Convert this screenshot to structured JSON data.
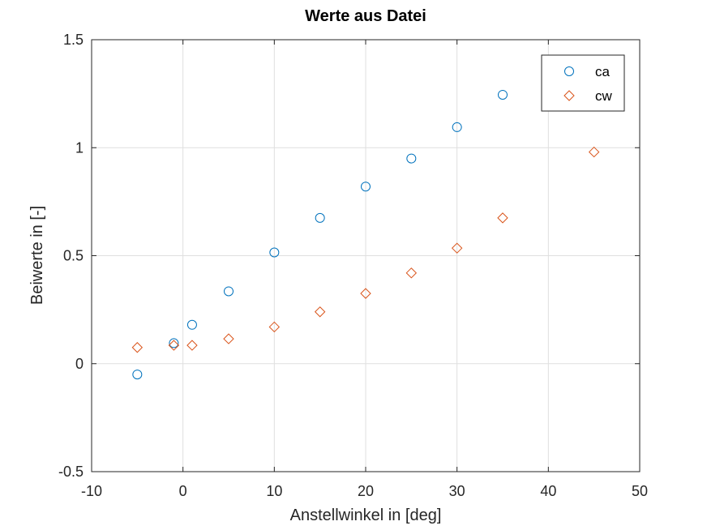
{
  "chart_data": {
    "type": "scatter",
    "title": "Werte aus Datei",
    "xlabel": "Anstellwinkel in [deg]",
    "ylabel": "Beiwerte in [-]",
    "xlim": [
      -10,
      50
    ],
    "ylim": [
      -0.5,
      1.5
    ],
    "xticks": [
      -10,
      0,
      10,
      20,
      30,
      40,
      50
    ],
    "xtick_labels": [
      "-10",
      "0",
      "10",
      "20",
      "30",
      "40",
      "50"
    ],
    "yticks": [
      -0.5,
      0,
      0.5,
      1,
      1.5
    ],
    "ytick_labels": [
      "-0.5",
      "0",
      "0.5",
      "1",
      "1.5"
    ],
    "grid": true,
    "legend_position": "top-right",
    "series": [
      {
        "name": "ca",
        "marker": "circle",
        "color": "#0072BD",
        "x": [
          -5,
          -1,
          1,
          5,
          10,
          15,
          20,
          25,
          30,
          35
        ],
        "y": [
          -0.05,
          0.095,
          0.18,
          0.335,
          0.515,
          0.675,
          0.82,
          0.95,
          1.095,
          1.245
        ]
      },
      {
        "name": "cw",
        "marker": "diamond",
        "color": "#D95319",
        "x": [
          -5,
          -1,
          1,
          5,
          10,
          15,
          20,
          25,
          30,
          35,
          45
        ],
        "y": [
          0.075,
          0.085,
          0.085,
          0.115,
          0.17,
          0.24,
          0.325,
          0.42,
          0.535,
          0.675,
          0.98
        ]
      }
    ]
  }
}
